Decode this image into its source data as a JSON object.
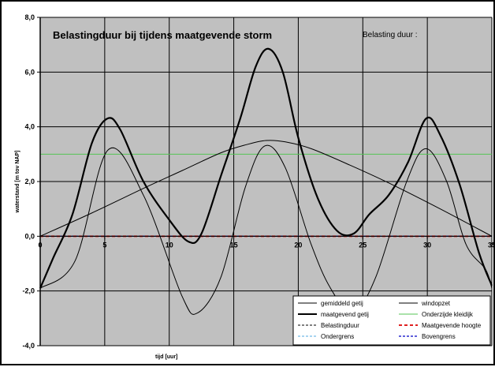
{
  "chart_data": {
    "type": "line",
    "title": "Belastingduur bij  tijdens maatgevende storm",
    "annotation": "Belasting duur :",
    "xlabel": "tijd [uur]",
    "ylabel": "waterstand [m tov NAP]",
    "xlim": [
      0,
      35
    ],
    "ylim": [
      -4.0,
      8.0
    ],
    "x_ticks": [
      "0",
      "5",
      "10",
      "15",
      "20",
      "25",
      "30",
      "35"
    ],
    "y_ticks": [
      "-4,0",
      "-2,0",
      "0,0",
      "2,0",
      "4,0",
      "6,0",
      "8,0"
    ],
    "grid": true,
    "legend_position": "bottom-right",
    "plot_background": "#c0c0c0",
    "series": [
      {
        "name": "gemiddeld getij",
        "color": "#000000",
        "width": 1,
        "dash": "",
        "x": [
          0,
          2.7,
          5.25,
          8,
          11,
          12.2,
          14,
          15.9,
          17.4,
          19,
          21,
          22.5,
          24.2,
          26,
          28.4,
          29.9,
          31.5,
          33,
          34.5,
          35
        ],
        "y": [
          -1.9,
          -0.9,
          3.15,
          1.5,
          -2.2,
          -2.8,
          -1.5,
          1.8,
          3.3,
          2.5,
          -0.3,
          -1.9,
          -2.8,
          -1.5,
          2.0,
          3.2,
          2.0,
          -0.3,
          -1.2,
          -1.9
        ]
      },
      {
        "name": "windopzet",
        "color": "#000000",
        "width": 1,
        "dash": "",
        "x": [
          0,
          4,
          8,
          11,
          14,
          16,
          17.5,
          19,
          21,
          24,
          27,
          31,
          35
        ],
        "y": [
          0,
          0.85,
          1.75,
          2.4,
          3.05,
          3.35,
          3.5,
          3.45,
          3.2,
          2.6,
          1.95,
          1.0,
          0
        ]
      },
      {
        "name": "maatgevend getij",
        "color": "#000000",
        "width": 2.2,
        "dash": "",
        "x": [
          0,
          1,
          2.5,
          4,
          5.2,
          6.2,
          8,
          10,
          11.5,
          12.5,
          14,
          15.5,
          16.7,
          17.7,
          18.8,
          20,
          21.5,
          23,
          24.3,
          25.5,
          27,
          28.5,
          29.9,
          31,
          32.5,
          34,
          35
        ],
        "y": [
          -1.9,
          -0.8,
          0.8,
          3.4,
          4.3,
          3.9,
          2.0,
          0.6,
          -0.2,
          0.1,
          2.2,
          4.3,
          6.2,
          6.85,
          6.0,
          3.6,
          1.4,
          0.2,
          0.1,
          0.8,
          1.5,
          2.7,
          4.3,
          3.7,
          1.9,
          -0.6,
          -1.8
        ]
      },
      {
        "name": "Onderzijde kleidijk",
        "color": "#55c455",
        "width": 1,
        "dash": "",
        "x": [
          0,
          35
        ],
        "y": [
          3.0,
          3.0
        ]
      },
      {
        "name": "Belastingduur",
        "color": "#000000",
        "width": 1,
        "dash": "3,2",
        "x": [
          0,
          35
        ],
        "y": [
          0,
          0
        ]
      },
      {
        "name": "Maatgevende hoogte",
        "color": "#e02020",
        "width": 2,
        "dash": "4,3",
        "x": [
          0,
          35
        ],
        "y": [
          0,
          0
        ]
      },
      {
        "name": "Ondergrens",
        "color": "#4fa8e0",
        "width": 1,
        "dash": "3,2",
        "x": [
          0,
          35
        ],
        "y": [
          0,
          0
        ]
      },
      {
        "name": "Bovengrens",
        "color": "#2a2acf",
        "width": 1.4,
        "dash": "3,2",
        "x": [
          0,
          35
        ],
        "y": [
          0,
          0
        ]
      }
    ],
    "legend_order": [
      [
        "gemiddeld getij",
        "windopzet"
      ],
      [
        "maatgevend getij",
        "Onderzijde kleidijk"
      ],
      [
        "Belastingduur",
        "Maatgevende hoogte"
      ],
      [
        "Ondergrens",
        "Bovengrens"
      ]
    ]
  }
}
